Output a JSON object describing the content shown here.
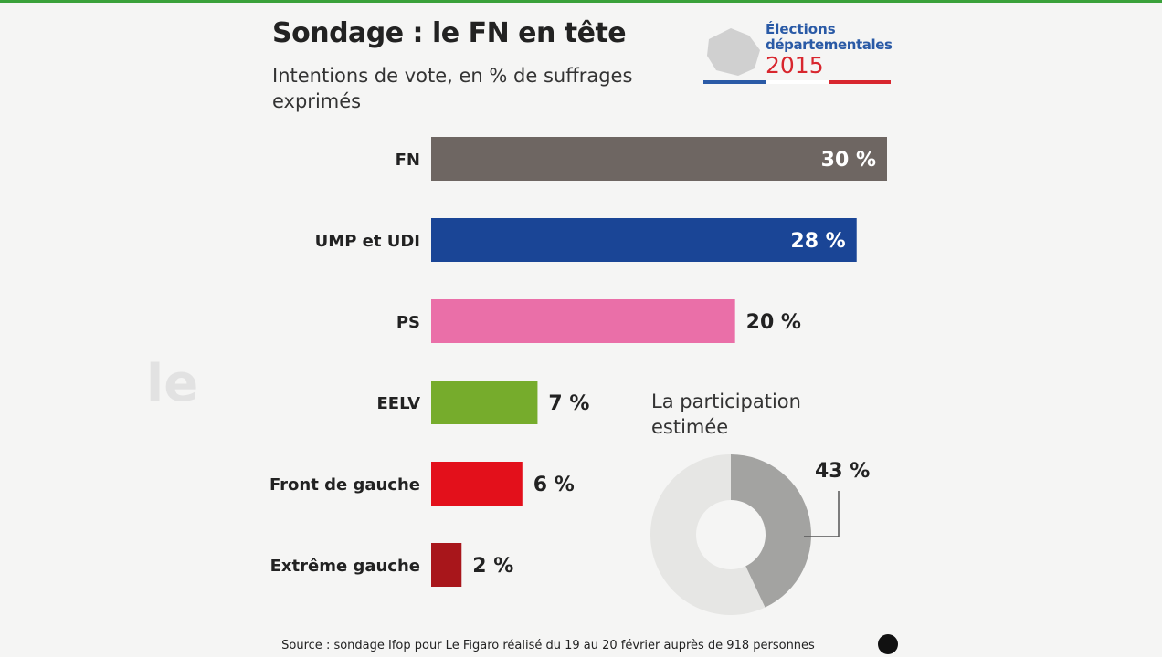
{
  "logo": {
    "line1": "Élections",
    "line2": "départementales",
    "year": "2015"
  },
  "watermark": "le",
  "source": "Source : sondage Ifop pour Le Figaro réalisé du 19 au 20 février auprès de 918 personnes",
  "chart_data": [
    {
      "type": "bar",
      "orientation": "horizontal",
      "title": "Sondage : le FN en tête",
      "subtitle": "Intentions de vote, en % de suffrages exprimés",
      "categories": [
        "FN",
        "UMP et UDI",
        "PS",
        "EELV",
        "Front de gauche",
        "Extrême gauche"
      ],
      "values": [
        30,
        28,
        20,
        7,
        6,
        2
      ],
      "value_labels": [
        "30 %",
        "28 %",
        "20 %",
        "7 %",
        "6 %",
        "2 %"
      ],
      "colors": [
        "#6e6662",
        "#1a4596",
        "#ea6fa8",
        "#76ac2c",
        "#e3101b",
        "#a8161b"
      ],
      "xlim": [
        0,
        30
      ]
    },
    {
      "type": "pie",
      "title": "La participation estimée",
      "values": [
        43,
        57
      ],
      "value_labels": [
        "43 %",
        null
      ],
      "colors": [
        "#a3a3a1",
        "#e6e6e4"
      ]
    }
  ]
}
